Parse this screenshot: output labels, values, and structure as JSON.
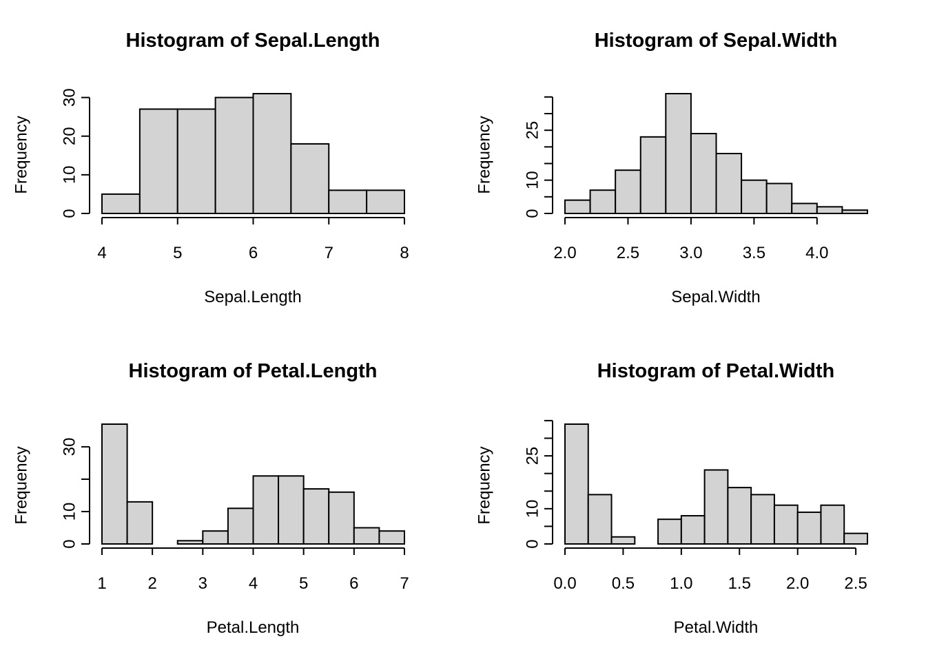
{
  "chart_data": [
    {
      "type": "histogram",
      "title": "Histogram of Sepal.Length",
      "xlabel": "Sepal.Length",
      "ylabel": "Frequency",
      "breaks": [
        4,
        4.5,
        5,
        5.5,
        6,
        6.5,
        7,
        7.5,
        8
      ],
      "counts": [
        5,
        27,
        27,
        30,
        31,
        18,
        6,
        6
      ],
      "xticks": [
        4,
        5,
        6,
        7,
        8
      ],
      "xtick_labels": [
        "4",
        "5",
        "6",
        "7",
        "8"
      ],
      "yticks": [
        0,
        10,
        20,
        30
      ],
      "ytick_labels": [
        "0",
        "10",
        "20",
        "30"
      ],
      "xlim": [
        4,
        8
      ],
      "ylim": [
        0,
        31
      ]
    },
    {
      "type": "histogram",
      "title": "Histogram of Sepal.Width",
      "xlabel": "Sepal.Width",
      "ylabel": "Frequency",
      "breaks": [
        2.0,
        2.2,
        2.4,
        2.6,
        2.8,
        3.0,
        3.2,
        3.4,
        3.6,
        3.8,
        4.0,
        4.2,
        4.4
      ],
      "counts": [
        4,
        7,
        13,
        23,
        36,
        24,
        18,
        10,
        9,
        3,
        2,
        1
      ],
      "xticks": [
        2.0,
        2.5,
        3.0,
        3.5,
        4.0
      ],
      "xtick_labels": [
        "2.0",
        "2.5",
        "3.0",
        "3.5",
        "4.0"
      ],
      "yticks": [
        0,
        5,
        10,
        15,
        20,
        25,
        30,
        35
      ],
      "ytick_labels": [
        "0",
        "",
        "10",
        "",
        "",
        "25",
        "",
        ""
      ],
      "xlim": [
        2.0,
        4.4
      ],
      "ylim": [
        0,
        36
      ]
    },
    {
      "type": "histogram",
      "title": "Histogram of Petal.Length",
      "xlabel": "Petal.Length",
      "ylabel": "Frequency",
      "breaks": [
        1,
        1.5,
        2,
        2.5,
        3,
        3.5,
        4,
        4.5,
        5,
        5.5,
        6,
        6.5,
        7
      ],
      "counts": [
        37,
        13,
        0,
        1,
        4,
        11,
        21,
        21,
        17,
        16,
        5,
        4
      ],
      "xticks": [
        1,
        2,
        3,
        4,
        5,
        6,
        7
      ],
      "xtick_labels": [
        "1",
        "2",
        "3",
        "4",
        "5",
        "6",
        "7"
      ],
      "yticks": [
        0,
        10,
        20,
        30
      ],
      "ytick_labels": [
        "0",
        "10",
        "",
        "30"
      ],
      "xlim": [
        1,
        7
      ],
      "ylim": [
        0,
        37
      ]
    },
    {
      "type": "histogram",
      "title": "Histogram of Petal.Width",
      "xlabel": "Petal.Width",
      "ylabel": "Frequency",
      "breaks": [
        0.0,
        0.2,
        0.4,
        0.6,
        0.8,
        1.0,
        1.2,
        1.4,
        1.6,
        1.8,
        2.0,
        2.2,
        2.4,
        2.6
      ],
      "counts": [
        34,
        14,
        2,
        0,
        7,
        8,
        21,
        16,
        14,
        11,
        9,
        11,
        3
      ],
      "xticks": [
        0.0,
        0.5,
        1.0,
        1.5,
        2.0,
        2.5
      ],
      "xtick_labels": [
        "0.0",
        "0.5",
        "1.0",
        "1.5",
        "2.0",
        "2.5"
      ],
      "yticks": [
        0,
        5,
        10,
        15,
        20,
        25,
        30,
        35
      ],
      "ytick_labels": [
        "0",
        "",
        "10",
        "",
        "",
        "25",
        "",
        ""
      ],
      "xlim": [
        0.0,
        2.6
      ],
      "ylim": [
        0,
        34
      ]
    }
  ]
}
